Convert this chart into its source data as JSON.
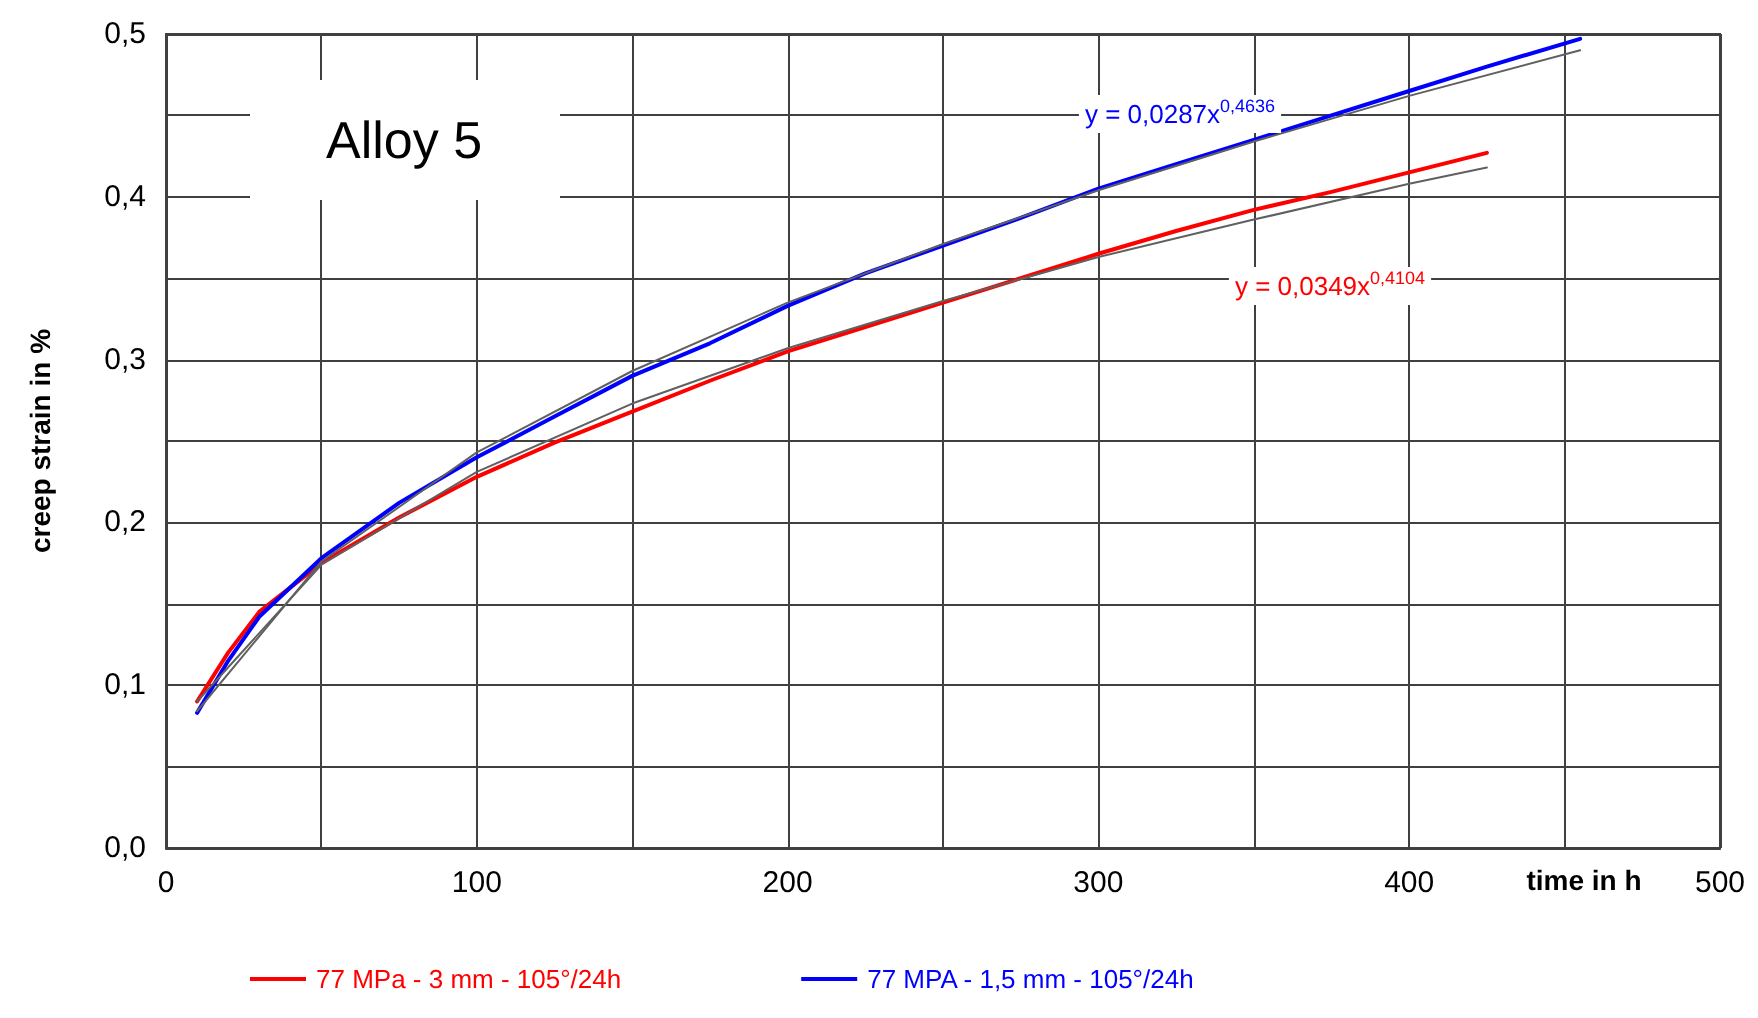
{
  "chart_data": {
    "type": "line",
    "title": "Alloy 5",
    "xlabel": "time in h",
    "ylabel": "creep strain in %",
    "series": [
      {
        "name": "77 MPa - 3 mm - 105°/24h",
        "color": "#ff0000",
        "x": [
          10,
          20,
          30,
          50,
          75,
          100,
          125,
          150,
          175,
          200,
          225,
          250,
          275,
          300,
          325,
          350,
          375,
          400,
          425
        ],
        "values": [
          0.09,
          0.12,
          0.145,
          0.175,
          0.203,
          0.228,
          0.249,
          0.268,
          0.287,
          0.305,
          0.32,
          0.335,
          0.35,
          0.365,
          0.379,
          0.392,
          0.403,
          0.415,
          0.427
        ]
      },
      {
        "name": "77 MPA - 1,5 mm - 105°/24h",
        "color": "#0000ff",
        "x": [
          10,
          20,
          30,
          50,
          75,
          100,
          125,
          150,
          175,
          200,
          225,
          250,
          275,
          300,
          325,
          350,
          375,
          400,
          425,
          455
        ],
        "values": [
          0.083,
          0.115,
          0.142,
          0.178,
          0.212,
          0.24,
          0.265,
          0.29,
          0.31,
          0.333,
          0.353,
          0.37,
          0.387,
          0.405,
          0.42,
          0.435,
          0.45,
          0.465,
          0.48,
          0.497
        ]
      },
      {
        "type": "line",
        "color": "#606060",
        "x": [
          10,
          50,
          100,
          150,
          200,
          250,
          300,
          350,
          400,
          425
        ],
        "values": [
          0.09,
          0.174,
          0.231,
          0.273,
          0.307,
          0.336,
          0.363,
          0.386,
          0.408,
          0.418
        ]
      },
      {
        "type": "line",
        "color": "#606060",
        "x": [
          10,
          50,
          100,
          150,
          200,
          250,
          300,
          350,
          400,
          455
        ],
        "values": [
          0.084,
          0.176,
          0.243,
          0.293,
          0.335,
          0.371,
          0.404,
          0.434,
          0.462,
          0.49
        ]
      }
    ],
    "annotations": [
      "y = 0,0349x$^{0,4104}$",
      "y = 0,0287x$^{0,4636}$"
    ],
    "xlim": [
      0,
      500
    ],
    "xticks": [
      0,
      {
        "value": 50,
        "label": null
      },
      100,
      {
        "value": 150,
        "label": null
      },
      200,
      {
        "value": 250,
        "label": null
      },
      300,
      {
        "value": 350,
        "label": null
      },
      400,
      {
        "value": 450,
        "label": null
      },
      500
    ],
    "ylim": [
      0,
      0.5
    ],
    "yticks": [
      {
        "value": 0,
        "label": "0,0"
      },
      {
        "value": 0.05,
        "label": null
      },
      {
        "value": 0.1,
        "label": "0,1"
      },
      {
        "value": 0.15,
        "label": null
      },
      {
        "value": 0.2,
        "label": "0,2"
      },
      {
        "value": 0.25,
        "label": null
      },
      {
        "value": 0.3,
        "label": "0,3"
      },
      {
        "value": 0.35,
        "label": null
      },
      {
        "value": 0.4,
        "label": "0,4"
      },
      {
        "value": 0.45,
        "label": null
      },
      {
        "value": 0.5,
        "label": "0,5"
      }
    ],
    "grid": true,
    "legend": "bottom",
    "marker": "none",
    "line_style": "solid"
  }
}
